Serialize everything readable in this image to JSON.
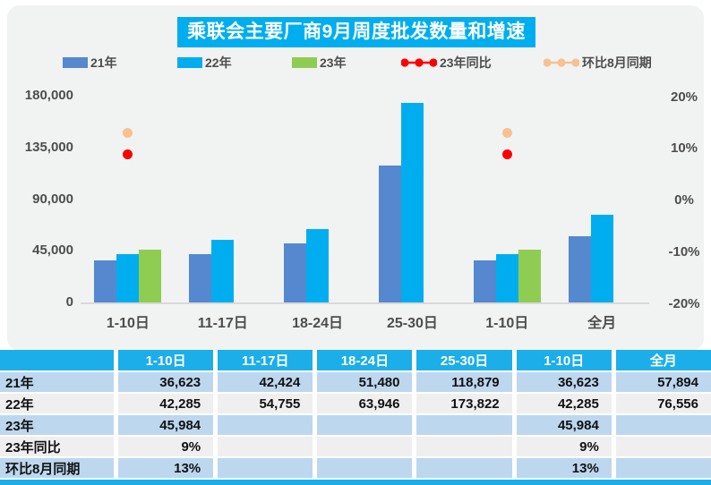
{
  "title": "乘联会主要厂商9月周度批发数量和增速",
  "colors": {
    "accent_cyan": "#00AEEF",
    "bar_21": "#5588CE",
    "bar_22": "#00AEEF",
    "bar_23": "#8FCD52",
    "dot_yoy": "#FF0000",
    "dot_mom": "#F8C191",
    "table_header": "#1CAEE8",
    "row_blue": "#BDD7EE",
    "row_gray": "#EFEFEF",
    "panel_gray": "#F1F2F2",
    "axis_text": "#4d4d4d"
  },
  "legend": [
    {
      "label": "21年",
      "type": "bar",
      "color": "#5588CE"
    },
    {
      "label": "22年",
      "type": "bar",
      "color": "#00AEEF"
    },
    {
      "label": "23年",
      "type": "bar",
      "color": "#8FCD52"
    },
    {
      "label": "23年同比",
      "type": "dot-line",
      "color": "#FF0000"
    },
    {
      "label": "环比8月同期",
      "type": "dot-line",
      "color": "#F8C191"
    }
  ],
  "chart_data": {
    "type": "bar+scatter",
    "title": "乘联会主要厂商9月周度批发数量和增速",
    "categories": [
      "1-10日",
      "11-17日",
      "18-24日",
      "25-30日",
      "1-10日",
      "全月"
    ],
    "series": [
      {
        "name": "21年",
        "type": "bar",
        "axis": "left",
        "color": "#5588CE",
        "values": [
          36623,
          42424,
          51480,
          118879,
          36623,
          57894
        ]
      },
      {
        "name": "22年",
        "type": "bar",
        "axis": "left",
        "color": "#00AEEF",
        "values": [
          42285,
          54755,
          63946,
          173822,
          42285,
          76556
        ]
      },
      {
        "name": "23年",
        "type": "bar",
        "axis": "left",
        "color": "#8FCD52",
        "values": [
          45984,
          null,
          null,
          null,
          45984,
          null
        ]
      },
      {
        "name": "23年同比",
        "type": "scatter",
        "axis": "right",
        "color": "#FF0000",
        "values": [
          9,
          null,
          null,
          null,
          9,
          null
        ]
      },
      {
        "name": "环比8月同期",
        "type": "scatter",
        "axis": "right",
        "color": "#F8C191",
        "values": [
          13,
          null,
          null,
          null,
          13,
          null
        ]
      }
    ],
    "left_axis": {
      "tick_labels": [
        "180,000",
        "135,000",
        "90,000",
        "45,000",
        "0"
      ],
      "tick_values": [
        180000,
        135000,
        90000,
        45000,
        0
      ],
      "ylim": [
        0,
        180000
      ]
    },
    "right_axis": {
      "tick_labels": [
        "20%",
        "10%",
        "0%",
        "-10%",
        "-20%"
      ],
      "tick_values": [
        20,
        10,
        0,
        -10,
        -20
      ],
      "ylim": [
        -20,
        20
      ]
    },
    "grid": false,
    "legend_position": "top"
  },
  "table": {
    "header": [
      "",
      "1-10日",
      "11-17日",
      "18-24日",
      "25-30日",
      "1-10日",
      "全月"
    ],
    "rows": [
      {
        "label": "21年",
        "values": [
          "36,623",
          "42,424",
          "51,480",
          "118,879",
          "36,623",
          "57,894"
        ]
      },
      {
        "label": "22年",
        "values": [
          "42,285",
          "54,755",
          "63,946",
          "173,822",
          "42,285",
          "76,556"
        ]
      },
      {
        "label": "23年",
        "values": [
          "45,984",
          "",
          "",
          "",
          "45,984",
          ""
        ]
      },
      {
        "label": "23年同比",
        "values": [
          "9%",
          "",
          "",
          "",
          "9%",
          ""
        ]
      },
      {
        "label": "环比8月同期",
        "values": [
          "13%",
          "",
          "",
          "",
          "13%",
          ""
        ]
      }
    ]
  }
}
